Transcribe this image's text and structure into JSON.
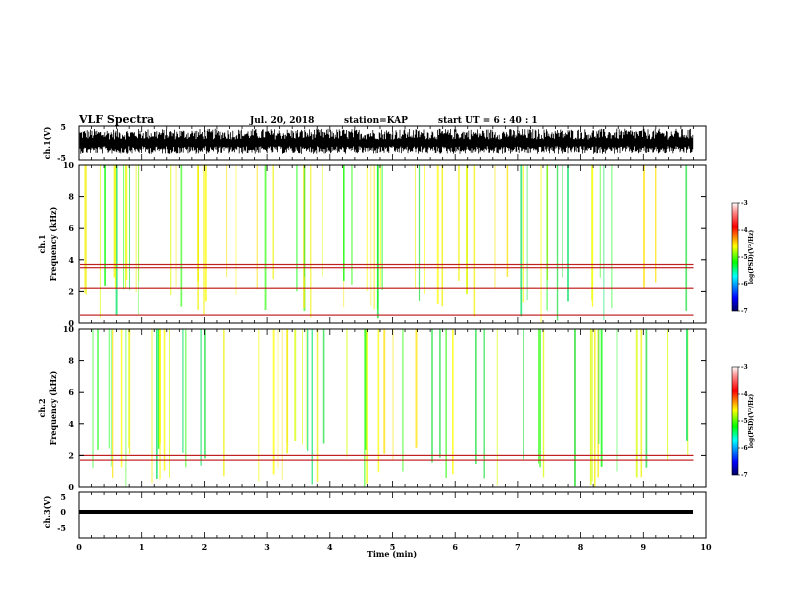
{
  "header": {
    "title": "VLF Spectra",
    "date": "Jul. 20, 2018",
    "station": "station=KAP",
    "start": "start UT =  6 : 40 : 1"
  },
  "chart_data": [
    {
      "type": "line",
      "name": "ch1-waveform",
      "ylabel": "ch.1(V)",
      "ylim": [
        -5,
        5
      ],
      "yticks": [
        "5",
        "-5"
      ],
      "xlim": [
        0,
        10
      ],
      "description_color": "#000000",
      "signal": "noise-like waveform filling roughly -3..4 V across 0..9.8 min"
    },
    {
      "type": "heatmap",
      "name": "ch1-spectrogram",
      "ylabel_line1": "ch.1",
      "ylabel_line2": "Frequency (kHz)",
      "ylim": [
        0,
        10
      ],
      "yticks": [
        "0",
        "2",
        "4",
        "6",
        "8",
        "10"
      ],
      "xlim": [
        0,
        10
      ],
      "data_end_min": 9.8,
      "colorbar": {
        "label": "log(PSD)(V²/Hz)",
        "range": [
          -7,
          -3
        ],
        "ticks": [
          "-3",
          "-4",
          "-5",
          "-6",
          "-7"
        ],
        "colors": [
          "#000080",
          "#0000ff",
          "#00ffff",
          "#00ff00",
          "#ffff00",
          "#ff0000",
          "#ff8080",
          "#ffffff"
        ]
      },
      "bands_khz": [
        {
          "from": 0.0,
          "to": 0.3,
          "level": "mixed"
        },
        {
          "from": 0.3,
          "to": 0.7,
          "level": "red-lines"
        },
        {
          "from": 0.9,
          "to": 2.0,
          "level": "green"
        },
        {
          "from": 2.0,
          "to": 3.3,
          "level": "yellow-green"
        },
        {
          "from": 3.3,
          "to": 10.0,
          "level": "red-yellow"
        }
      ],
      "lines_khz": [
        0.5,
        2.2,
        3.5,
        3.7
      ]
    },
    {
      "type": "heatmap",
      "name": "ch2-spectrogram",
      "ylabel_line1": "ch.2",
      "ylabel_line2": "Frequency (kHz)",
      "ylim": [
        0,
        10
      ],
      "yticks": [
        "0",
        "2",
        "4",
        "6",
        "8",
        "10"
      ],
      "xlim": [
        0,
        10
      ],
      "data_end_min": 9.8,
      "colorbar": {
        "label": "log(PSD)(V²/Hz)",
        "range": [
          -7,
          -3
        ],
        "ticks": [
          "-3",
          "-4",
          "-5",
          "-6",
          "-7"
        ],
        "colors": [
          "#000080",
          "#0000ff",
          "#00ffff",
          "#00ff00",
          "#ffff00",
          "#ff0000",
          "#ff8080",
          "#ffffff"
        ]
      },
      "bands_khz": [
        {
          "from": 0.0,
          "to": 0.5,
          "level": "green-yellow"
        },
        {
          "from": 0.5,
          "to": 2.0,
          "level": "cyan-green"
        },
        {
          "from": 2.0,
          "to": 3.0,
          "level": "green"
        },
        {
          "from": 3.0,
          "to": 10.0,
          "level": "red-yellow"
        }
      ],
      "lines_khz": [
        1.7,
        2.0
      ]
    },
    {
      "type": "line",
      "name": "ch3-waveform",
      "ylabel": "ch.3(V)",
      "ylim": [
        -5,
        5
      ],
      "yticks": [
        "5",
        "0",
        "-5"
      ],
      "xlim": [
        0,
        10
      ],
      "constant_value": 0.0,
      "xlabel": "Time (min)",
      "xticks": [
        "0",
        "1",
        "2",
        "3",
        "4",
        "5",
        "6",
        "7",
        "8",
        "9",
        "10"
      ]
    }
  ]
}
